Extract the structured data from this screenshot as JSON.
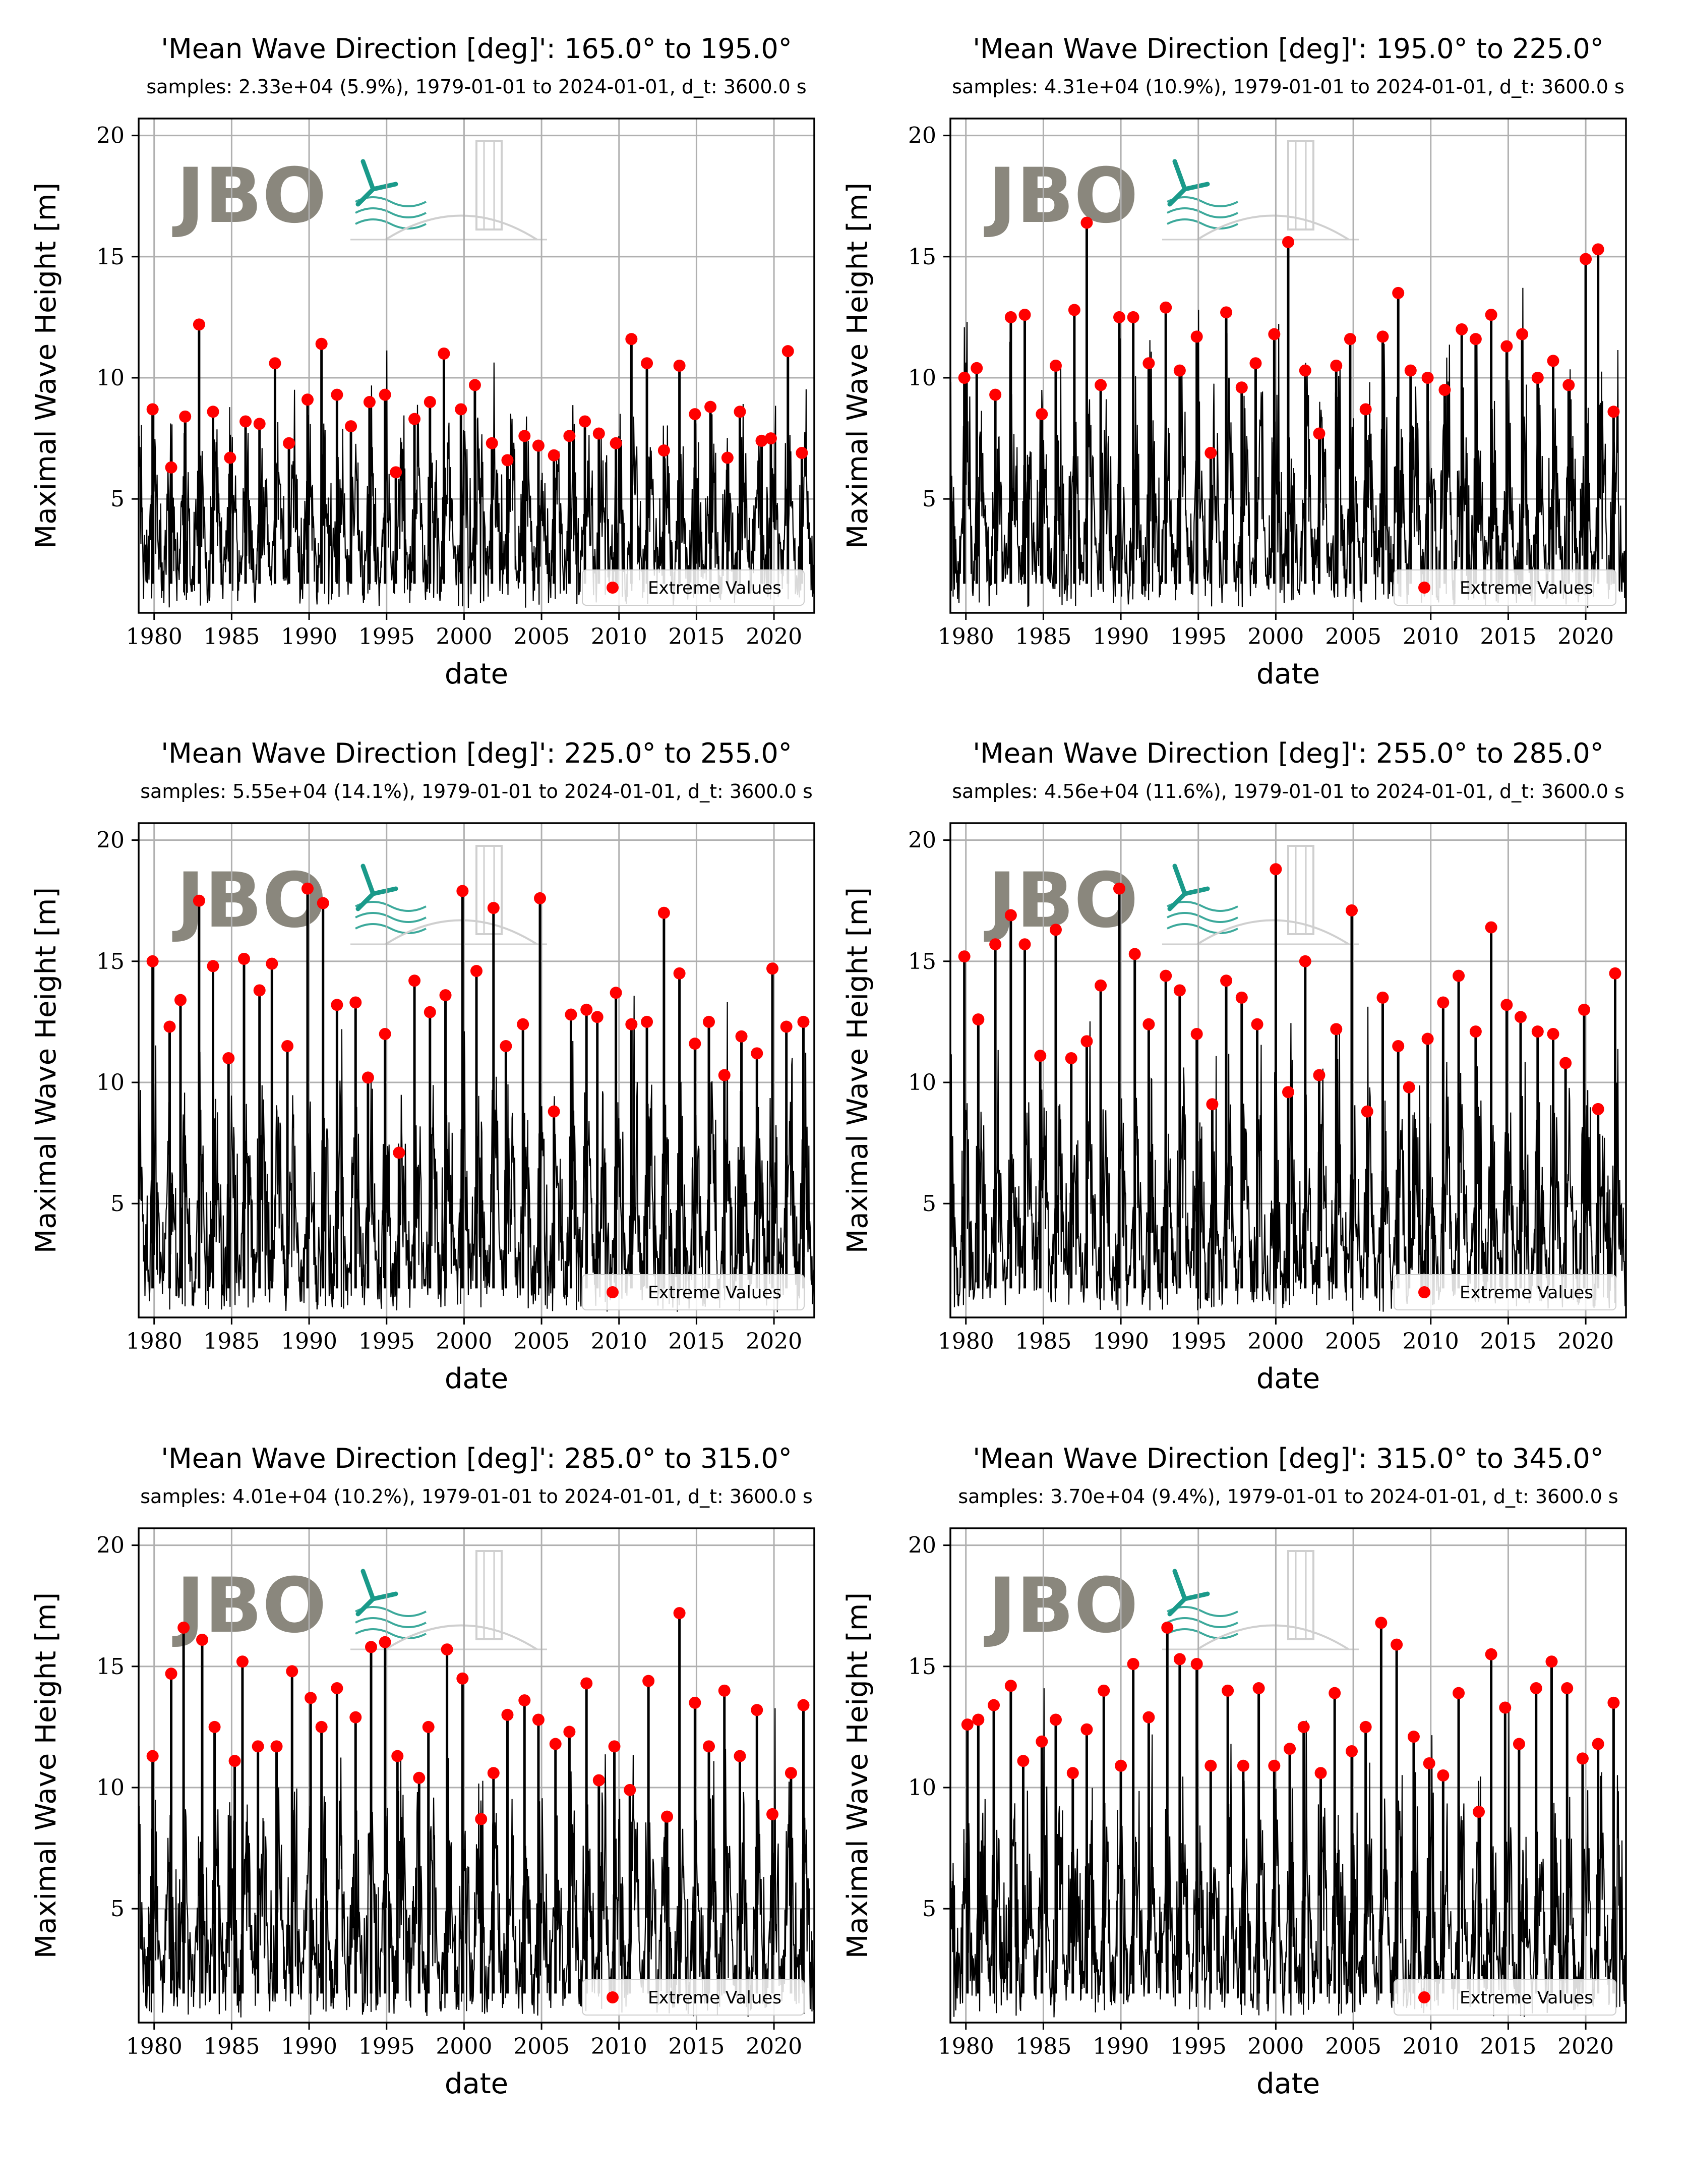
{
  "figure": {
    "logo_text": "JBO",
    "colors": {
      "series": "#000000",
      "extremes": "#ff0000",
      "grid": "#b0b0b0",
      "logo": "#8a877d",
      "logo_accent": "#1a9a8a"
    }
  },
  "chart_data": [
    {
      "type": "line",
      "title": "'Mean Wave Direction [deg]': 165.0° to 195.0°",
      "subtitle": "samples: 2.33e+04 (5.9%), 1979-01-01 to 2024-01-01, d_t: 3600.0 s",
      "xlabel": "date",
      "ylabel": "Maximal Wave Height [m]",
      "xlim": [
        1979.0,
        2022.6
      ],
      "ylim": [
        0.3,
        20.7
      ],
      "xticks": [
        1980,
        1985,
        1990,
        1995,
        2000,
        2005,
        2010,
        2015,
        2020
      ],
      "yticks": [
        5,
        10,
        15,
        20
      ],
      "grid": true,
      "legend": "lower-right",
      "series": [
        {
          "name": "Extreme Values",
          "x": [
            1979.9,
            1981.1,
            1982.0,
            1982.9,
            1983.8,
            1984.9,
            1985.9,
            1986.8,
            1987.8,
            1988.7,
            1989.9,
            1990.8,
            1991.8,
            1992.7,
            1993.9,
            1994.9,
            1995.6,
            1996.8,
            1997.8,
            1998.7,
            1999.8,
            2000.7,
            2001.8,
            2002.8,
            2003.9,
            2004.8,
            2005.8,
            2006.8,
            2007.8,
            2008.7,
            2009.8,
            2010.8,
            2011.8,
            2012.9,
            2013.9,
            2014.9,
            2015.9,
            2017.0,
            2017.8,
            2019.2,
            2019.8,
            2020.9,
            2021.8
          ],
          "y": [
            8.7,
            6.3,
            8.4,
            12.2,
            8.6,
            6.7,
            8.2,
            8.1,
            10.6,
            7.3,
            9.1,
            11.4,
            9.3,
            8.0,
            9.0,
            9.3,
            6.1,
            8.3,
            9.0,
            11.0,
            8.7,
            9.7,
            7.3,
            6.6,
            7.6,
            7.2,
            6.8,
            7.6,
            8.2,
            7.7,
            7.3,
            11.6,
            10.6,
            7.0,
            10.5,
            8.5,
            8.8,
            6.7,
            8.6,
            7.4,
            7.5,
            11.1,
            6.9
          ]
        }
      ]
    },
    {
      "type": "line",
      "title": "'Mean Wave Direction [deg]': 195.0° to 225.0°",
      "subtitle": "samples: 4.31e+04 (10.9%), 1979-01-01 to 2024-01-01, d_t: 3600.0 s",
      "xlabel": "date",
      "ylabel": "Maximal Wave Height [m]",
      "xlim": [
        1979.0,
        2022.6
      ],
      "ylim": [
        0.3,
        20.7
      ],
      "xticks": [
        1980,
        1985,
        1990,
        1995,
        2000,
        2005,
        2010,
        2015,
        2020
      ],
      "yticks": [
        5,
        10,
        15,
        20
      ],
      "grid": true,
      "legend": "lower-right",
      "series": [
        {
          "name": "Extreme Values",
          "x": [
            1979.9,
            1980.7,
            1981.9,
            1982.9,
            1983.8,
            1984.9,
            1985.8,
            1987.0,
            1987.8,
            1988.7,
            1989.9,
            1990.8,
            1991.8,
            1992.9,
            1993.8,
            1994.9,
            1995.8,
            1996.8,
            1997.8,
            1998.7,
            1999.9,
            2000.8,
            2001.9,
            2002.8,
            2003.9,
            2004.8,
            2005.8,
            2006.9,
            2007.9,
            2008.7,
            2009.8,
            2010.9,
            2012.0,
            2012.9,
            2013.9,
            2014.9,
            2015.9,
            2016.9,
            2017.9,
            2018.9,
            2020.0,
            2020.8,
            2021.8
          ],
          "y": [
            10.0,
            10.4,
            9.3,
            12.5,
            12.6,
            8.5,
            10.5,
            12.8,
            16.4,
            9.7,
            12.5,
            12.5,
            10.6,
            12.9,
            10.3,
            11.7,
            6.9,
            12.7,
            9.6,
            10.6,
            11.8,
            15.6,
            10.3,
            7.7,
            10.5,
            11.6,
            8.7,
            11.7,
            13.5,
            10.3,
            10.0,
            9.5,
            12.0,
            11.6,
            12.6,
            11.3,
            11.8,
            10.0,
            10.7,
            9.7,
            14.9,
            15.3,
            8.6
          ]
        }
      ]
    },
    {
      "type": "line",
      "title": "'Mean Wave Direction [deg]': 225.0° to 255.0°",
      "subtitle": "samples: 5.55e+04 (14.1%), 1979-01-01 to 2024-01-01, d_t: 3600.0 s",
      "xlabel": "date",
      "ylabel": "Maximal Wave Height [m]",
      "xlim": [
        1979.0,
        2022.6
      ],
      "ylim": [
        0.3,
        20.7
      ],
      "xticks": [
        1980,
        1985,
        1990,
        1995,
        2000,
        2005,
        2010,
        2015,
        2020
      ],
      "yticks": [
        5,
        10,
        15,
        20
      ],
      "grid": true,
      "legend": "lower-right",
      "series": [
        {
          "name": "Extreme Values",
          "x": [
            1979.9,
            1981.0,
            1981.7,
            1982.9,
            1983.8,
            1984.8,
            1985.8,
            1986.8,
            1987.6,
            1988.6,
            1989.9,
            1990.9,
            1991.8,
            1993.0,
            1993.8,
            1994.9,
            1995.8,
            1996.8,
            1997.8,
            1998.8,
            1999.9,
            2000.8,
            2001.9,
            2002.7,
            2003.8,
            2004.9,
            2005.8,
            2006.9,
            2007.9,
            2008.6,
            2009.8,
            2010.8,
            2011.8,
            2012.9,
            2013.9,
            2014.9,
            2015.8,
            2016.8,
            2017.9,
            2018.9,
            2019.9,
            2020.8,
            2021.9
          ],
          "y": [
            15.0,
            12.3,
            13.4,
            17.5,
            14.8,
            11.0,
            15.1,
            13.8,
            14.9,
            11.5,
            18.0,
            17.4,
            13.2,
            13.3,
            10.2,
            12.0,
            7.1,
            14.2,
            12.9,
            13.6,
            17.9,
            14.6,
            17.2,
            11.5,
            12.4,
            17.6,
            8.8,
            12.8,
            13.0,
            12.7,
            13.7,
            12.4,
            12.5,
            17.0,
            14.5,
            11.6,
            12.5,
            10.3,
            11.9,
            11.2,
            14.7,
            12.3,
            12.5
          ]
        }
      ]
    },
    {
      "type": "line",
      "title": "'Mean Wave Direction [deg]': 255.0° to 285.0°",
      "subtitle": "samples: 4.56e+04 (11.6%), 1979-01-01 to 2024-01-01, d_t: 3600.0 s",
      "xlabel": "date",
      "ylabel": "Maximal Wave Height [m]",
      "xlim": [
        1979.0,
        2022.6
      ],
      "ylim": [
        0.3,
        20.7
      ],
      "xticks": [
        1980,
        1985,
        1990,
        1995,
        2000,
        2005,
        2010,
        2015,
        2020
      ],
      "yticks": [
        5,
        10,
        15,
        20
      ],
      "grid": true,
      "legend": "lower-right",
      "series": [
        {
          "name": "Extreme Values",
          "x": [
            1979.9,
            1980.8,
            1981.9,
            1982.9,
            1983.8,
            1984.8,
            1985.8,
            1986.8,
            1987.8,
            1988.7,
            1989.9,
            1990.9,
            1991.8,
            1992.9,
            1993.8,
            1994.9,
            1995.9,
            1996.8,
            1997.8,
            1998.8,
            2000.0,
            2000.8,
            2001.9,
            2002.8,
            2003.9,
            2004.9,
            2005.9,
            2006.9,
            2007.9,
            2008.6,
            2009.8,
            2010.8,
            2011.8,
            2012.9,
            2013.9,
            2014.9,
            2015.8,
            2016.9,
            2017.9,
            2018.7,
            2019.9,
            2020.8,
            2021.9
          ],
          "y": [
            15.2,
            12.6,
            15.7,
            16.9,
            15.7,
            11.1,
            16.3,
            11.0,
            11.7,
            14.0,
            18.0,
            15.3,
            12.4,
            14.4,
            13.8,
            12.0,
            9.1,
            14.2,
            13.5,
            12.4,
            18.8,
            9.6,
            15.0,
            10.3,
            12.2,
            17.1,
            8.8,
            13.5,
            11.5,
            9.8,
            11.8,
            13.3,
            14.4,
            12.1,
            16.4,
            13.2,
            12.7,
            12.1,
            12.0,
            10.8,
            13.0,
            8.9,
            14.5
          ]
        }
      ]
    },
    {
      "type": "line",
      "title": "'Mean Wave Direction [deg]': 285.0° to 315.0°",
      "subtitle": "samples: 4.01e+04 (10.2%), 1979-01-01 to 2024-01-01, d_t: 3600.0 s",
      "xlabel": "date",
      "ylabel": "Maximal Wave Height [m]",
      "xlim": [
        1979.0,
        2022.6
      ],
      "ylim": [
        0.3,
        20.7
      ],
      "xticks": [
        1980,
        1985,
        1990,
        1995,
        2000,
        2005,
        2010,
        2015,
        2020
      ],
      "yticks": [
        5,
        10,
        15,
        20
      ],
      "grid": true,
      "legend": "lower-right",
      "series": [
        {
          "name": "Extreme Values",
          "x": [
            1979.9,
            1981.1,
            1981.9,
            1983.1,
            1983.9,
            1985.2,
            1985.7,
            1986.7,
            1987.9,
            1988.9,
            1990.1,
            1990.8,
            1991.8,
            1993.0,
            1994.0,
            1994.9,
            1995.7,
            1997.1,
            1997.7,
            1998.9,
            1999.9,
            2001.1,
            2001.9,
            2002.8,
            2003.9,
            2004.8,
            2005.9,
            2006.8,
            2007.9,
            2008.7,
            2009.7,
            2010.7,
            2011.9,
            2013.1,
            2013.9,
            2014.9,
            2015.8,
            2016.8,
            2017.8,
            2018.9,
            2019.9,
            2021.1,
            2021.9
          ],
          "y": [
            11.3,
            14.7,
            16.6,
            16.1,
            12.5,
            11.1,
            15.2,
            11.7,
            11.7,
            14.8,
            13.7,
            12.5,
            14.1,
            12.9,
            15.8,
            16.0,
            11.3,
            10.4,
            12.5,
            15.7,
            14.5,
            8.7,
            10.6,
            13.0,
            13.6,
            12.8,
            11.8,
            12.3,
            14.3,
            10.3,
            11.7,
            9.9,
            14.4,
            8.8,
            17.2,
            13.5,
            11.7,
            14.0,
            11.3,
            13.2,
            8.9,
            10.6,
            13.4
          ]
        }
      ]
    },
    {
      "type": "line",
      "title": "'Mean Wave Direction [deg]': 315.0° to 345.0°",
      "subtitle": "samples: 3.70e+04 (9.4%), 1979-01-01 to 2024-01-01, d_t: 3600.0 s",
      "xlabel": "date",
      "ylabel": "Maximal Wave Height [m]",
      "xlim": [
        1979.0,
        2022.6
      ],
      "ylim": [
        0.3,
        20.7
      ],
      "xticks": [
        1980,
        1985,
        1990,
        1995,
        2000,
        2005,
        2010,
        2015,
        2020
      ],
      "yticks": [
        5,
        10,
        15,
        20
      ],
      "grid": true,
      "legend": "lower-right",
      "series": [
        {
          "name": "Extreme Values",
          "x": [
            1980.1,
            1980.8,
            1981.8,
            1982.9,
            1983.7,
            1984.9,
            1985.8,
            1986.9,
            1987.8,
            1988.9,
            1990.0,
            1990.8,
            1991.8,
            1993.0,
            1993.8,
            1994.9,
            1995.8,
            1996.9,
            1997.9,
            1998.9,
            1999.9,
            2000.9,
            2001.8,
            2002.9,
            2003.8,
            2004.9,
            2005.8,
            2006.8,
            2007.8,
            2008.9,
            2009.9,
            2010.8,
            2011.8,
            2013.1,
            2013.9,
            2014.8,
            2015.7,
            2016.8,
            2017.8,
            2018.8,
            2019.8,
            2020.8,
            2021.8
          ],
          "y": [
            12.6,
            12.8,
            13.4,
            14.2,
            11.1,
            11.9,
            12.8,
            10.6,
            12.4,
            14.0,
            10.9,
            15.1,
            12.9,
            16.6,
            15.3,
            15.1,
            10.9,
            14.0,
            10.9,
            14.1,
            10.9,
            11.6,
            12.5,
            10.6,
            13.9,
            11.5,
            12.5,
            16.8,
            15.9,
            12.1,
            11.0,
            10.5,
            13.9,
            9.0,
            15.5,
            13.3,
            11.8,
            14.1,
            15.2,
            14.1,
            11.2,
            11.8,
            13.5
          ]
        }
      ]
    }
  ]
}
